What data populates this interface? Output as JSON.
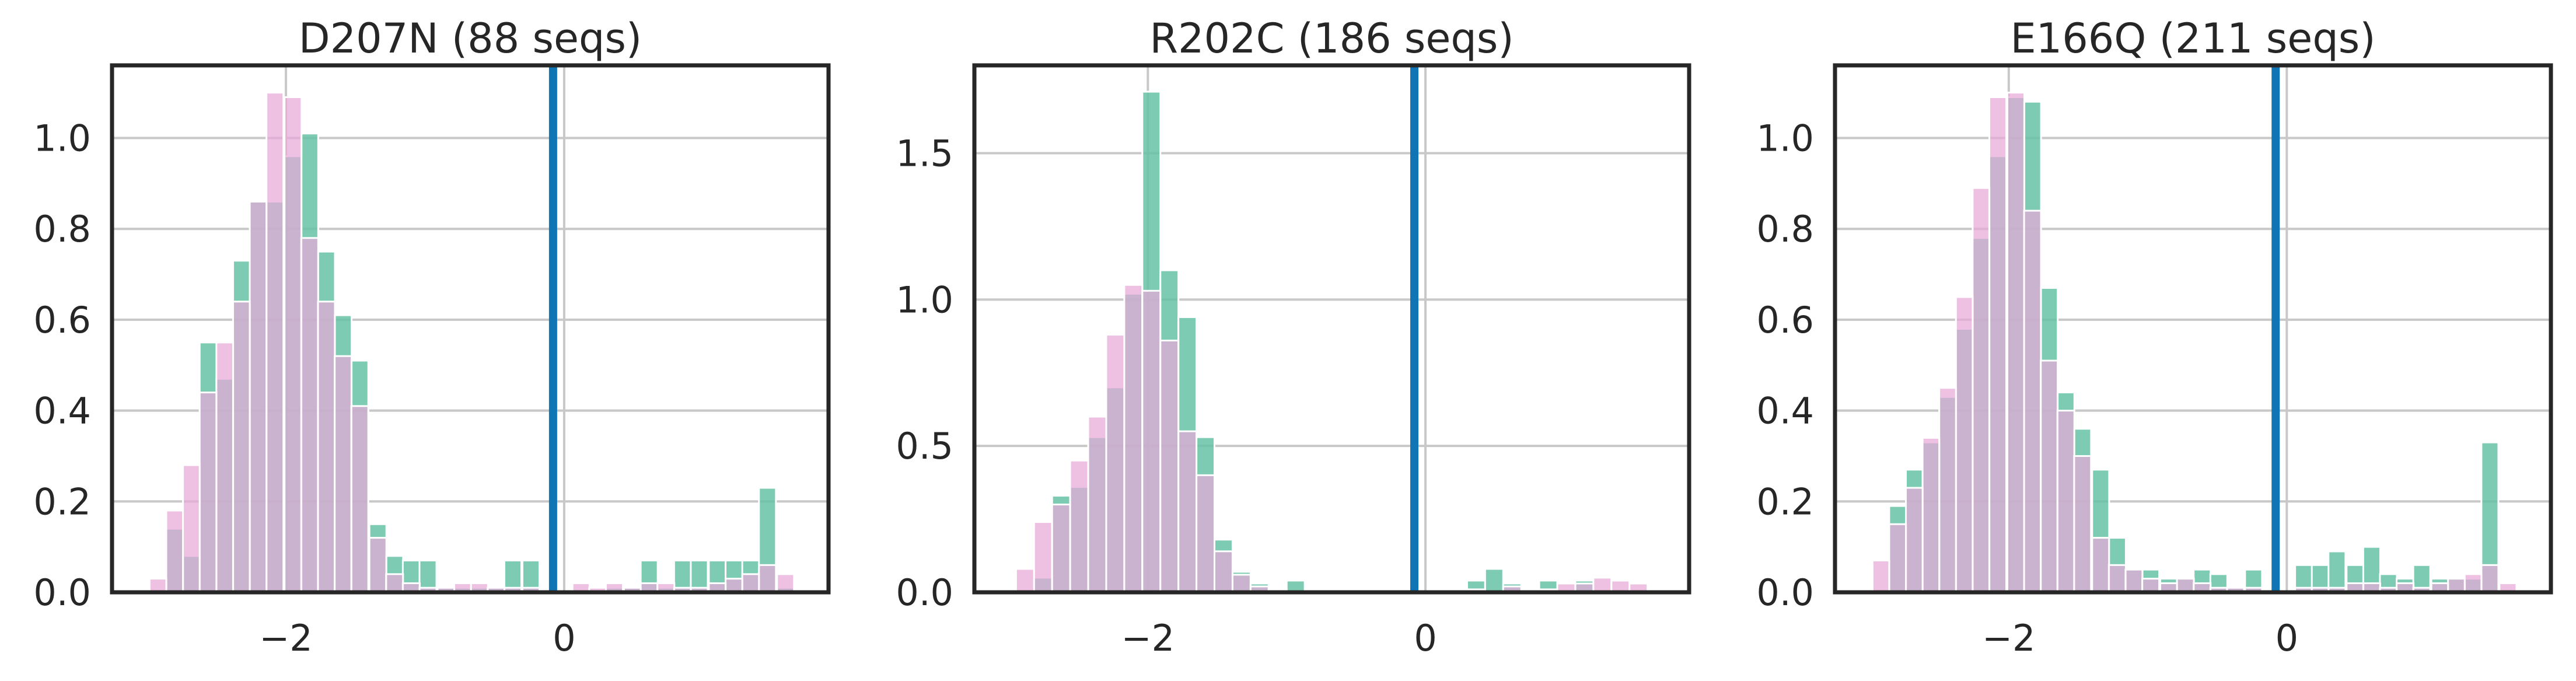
{
  "colors": {
    "series_a": "#66c2a5",
    "series_b": "#e7a9d8",
    "overlap": "#9b8fb4",
    "threshold": "#0f75b5",
    "grid": "#c8c8c8",
    "axis": "#262626"
  },
  "chart_data": [
    {
      "type": "bar",
      "title": "D207N (88 seqs)",
      "xlabel": "",
      "ylabel": "",
      "xlim": [
        -3.25,
        1.9
      ],
      "ylim": [
        0,
        1.16
      ],
      "xticks": [
        -2,
        0
      ],
      "xtick_labels": [
        "−2",
        "0"
      ],
      "yticks": [
        0.0,
        0.2,
        0.4,
        0.6,
        0.8,
        1.0
      ],
      "ytick_labels": [
        "0.0",
        "0.2",
        "0.4",
        "0.6",
        "0.8",
        "1.0"
      ],
      "grid": true,
      "threshold_x": -0.08,
      "series": [
        {
          "bin_width": 0.122,
          "bins": [
            {
              "x": -2.86,
              "y": 0.14
            },
            {
              "x": -2.74,
              "y": 0.08
            },
            {
              "x": -2.62,
              "y": 0.55
            },
            {
              "x": -2.5,
              "y": 0.47
            },
            {
              "x": -2.38,
              "y": 0.73
            },
            {
              "x": -2.26,
              "y": 0.86
            },
            {
              "x": -2.14,
              "y": 0.86
            },
            {
              "x": -2.01,
              "y": 0.96
            },
            {
              "x": -1.89,
              "y": 1.01
            },
            {
              "x": -1.77,
              "y": 0.75
            },
            {
              "x": -1.65,
              "y": 0.61
            },
            {
              "x": -1.53,
              "y": 0.51
            },
            {
              "x": -1.4,
              "y": 0.15
            },
            {
              "x": -1.28,
              "y": 0.08
            },
            {
              "x": -1.16,
              "y": 0.07
            },
            {
              "x": -1.04,
              "y": 0.07
            },
            {
              "x": -0.91,
              "y": 0.01
            },
            {
              "x": -0.79,
              "y": 0.01
            },
            {
              "x": -0.67,
              "y": 0.01
            },
            {
              "x": -0.55,
              "y": 0.01
            },
            {
              "x": -0.43,
              "y": 0.07
            },
            {
              "x": -0.3,
              "y": 0.07
            },
            {
              "x": 0.3,
              "y": 0.01
            },
            {
              "x": 0.43,
              "y": 0.01
            },
            {
              "x": 0.55,
              "y": 0.07
            },
            {
              "x": 0.67,
              "y": 0.01
            },
            {
              "x": 0.79,
              "y": 0.07
            },
            {
              "x": 0.91,
              "y": 0.07
            },
            {
              "x": 1.04,
              "y": 0.07
            },
            {
              "x": 1.16,
              "y": 0.07
            },
            {
              "x": 1.28,
              "y": 0.07
            },
            {
              "x": 1.4,
              "y": 0.23
            },
            {
              "x": 1.53,
              "y": 0.01
            }
          ]
        },
        {
          "bin_width": 0.122,
          "bins": [
            {
              "x": -2.98,
              "y": 0.03
            },
            {
              "x": -2.86,
              "y": 0.18
            },
            {
              "x": -2.74,
              "y": 0.28
            },
            {
              "x": -2.62,
              "y": 0.44
            },
            {
              "x": -2.5,
              "y": 0.55
            },
            {
              "x": -2.38,
              "y": 0.64
            },
            {
              "x": -2.26,
              "y": 0.86
            },
            {
              "x": -2.14,
              "y": 1.1
            },
            {
              "x": -2.01,
              "y": 1.09
            },
            {
              "x": -1.89,
              "y": 0.78
            },
            {
              "x": -1.77,
              "y": 0.64
            },
            {
              "x": -1.65,
              "y": 0.52
            },
            {
              "x": -1.53,
              "y": 0.41
            },
            {
              "x": -1.4,
              "y": 0.12
            },
            {
              "x": -1.28,
              "y": 0.04
            },
            {
              "x": -1.16,
              "y": 0.02
            },
            {
              "x": -1.04,
              "y": 0.01
            },
            {
              "x": -0.91,
              "y": 0.01
            },
            {
              "x": -0.79,
              "y": 0.02
            },
            {
              "x": -0.67,
              "y": 0.02
            },
            {
              "x": -0.55,
              "y": 0.01
            },
            {
              "x": -0.43,
              "y": 0.01
            },
            {
              "x": -0.3,
              "y": 0.01
            },
            {
              "x": 0.06,
              "y": 0.02
            },
            {
              "x": 0.18,
              "y": 0.01
            },
            {
              "x": 0.3,
              "y": 0.02
            },
            {
              "x": 0.43,
              "y": 0.01
            },
            {
              "x": 0.55,
              "y": 0.02
            },
            {
              "x": 0.67,
              "y": 0.02
            },
            {
              "x": 0.79,
              "y": 0.01
            },
            {
              "x": 0.91,
              "y": 0.01
            },
            {
              "x": 1.04,
              "y": 0.02
            },
            {
              "x": 1.16,
              "y": 0.03
            },
            {
              "x": 1.28,
              "y": 0.04
            },
            {
              "x": 1.4,
              "y": 0.06
            },
            {
              "x": 1.53,
              "y": 0.04
            }
          ]
        }
      ]
    },
    {
      "type": "bar",
      "title": "R202C (186 seqs)",
      "xlabel": "",
      "ylabel": "",
      "xlim": [
        -3.25,
        1.9
      ],
      "ylim": [
        0,
        1.8
      ],
      "xticks": [
        -2,
        0
      ],
      "xtick_labels": [
        "−2",
        "0"
      ],
      "yticks": [
        0.0,
        0.5,
        1.0,
        1.5
      ],
      "ytick_labels": [
        "0.0",
        "0.5",
        "1.0",
        "1.5"
      ],
      "grid": true,
      "threshold_x": -0.08,
      "series": [
        {
          "bin_width": 0.13,
          "bins": [
            {
              "x": -2.95,
              "y": 0.01
            },
            {
              "x": -2.82,
              "y": 0.05
            },
            {
              "x": -2.69,
              "y": 0.33
            },
            {
              "x": -2.56,
              "y": 0.36
            },
            {
              "x": -2.43,
              "y": 0.53
            },
            {
              "x": -2.3,
              "y": 0.7
            },
            {
              "x": -2.17,
              "y": 1.02
            },
            {
              "x": -2.04,
              "y": 1.71
            },
            {
              "x": -1.91,
              "y": 1.1
            },
            {
              "x": -1.78,
              "y": 0.94
            },
            {
              "x": -1.65,
              "y": 0.53
            },
            {
              "x": -1.52,
              "y": 0.18
            },
            {
              "x": -1.39,
              "y": 0.07
            },
            {
              "x": -1.26,
              "y": 0.03
            },
            {
              "x": -1.0,
              "y": 0.04
            },
            {
              "x": 0.3,
              "y": 0.04
            },
            {
              "x": 0.43,
              "y": 0.08
            },
            {
              "x": 0.56,
              "y": 0.03
            },
            {
              "x": 0.82,
              "y": 0.04
            },
            {
              "x": 1.08,
              "y": 0.04
            }
          ]
        },
        {
          "bin_width": 0.13,
          "bins": [
            {
              "x": -2.95,
              "y": 0.08
            },
            {
              "x": -2.82,
              "y": 0.24
            },
            {
              "x": -2.69,
              "y": 0.3
            },
            {
              "x": -2.56,
              "y": 0.45
            },
            {
              "x": -2.43,
              "y": 0.6
            },
            {
              "x": -2.3,
              "y": 0.88
            },
            {
              "x": -2.17,
              "y": 1.05
            },
            {
              "x": -2.04,
              "y": 1.03
            },
            {
              "x": -1.91,
              "y": 0.86
            },
            {
              "x": -1.78,
              "y": 0.55
            },
            {
              "x": -1.65,
              "y": 0.4
            },
            {
              "x": -1.52,
              "y": 0.14
            },
            {
              "x": -1.39,
              "y": 0.06
            },
            {
              "x": -1.26,
              "y": 0.02
            },
            {
              "x": -1.13,
              "y": 0.01
            },
            {
              "x": 0.04,
              "y": 0.01
            },
            {
              "x": 0.17,
              "y": 0.01
            },
            {
              "x": 0.3,
              "y": 0.01
            },
            {
              "x": 0.56,
              "y": 0.02
            },
            {
              "x": 0.82,
              "y": 0.01
            },
            {
              "x": 0.95,
              "y": 0.03
            },
            {
              "x": 1.08,
              "y": 0.03
            },
            {
              "x": 1.21,
              "y": 0.05
            },
            {
              "x": 1.34,
              "y": 0.04
            },
            {
              "x": 1.47,
              "y": 0.03
            }
          ]
        }
      ]
    },
    {
      "type": "bar",
      "title": "E166Q (211 seqs)",
      "xlabel": "",
      "ylabel": "",
      "xlim": [
        -3.25,
        1.9
      ],
      "ylim": [
        0,
        1.16
      ],
      "xticks": [
        -2,
        0
      ],
      "xtick_labels": [
        "−2",
        "0"
      ],
      "yticks": [
        0.0,
        0.2,
        0.4,
        0.6,
        0.8,
        1.0
      ],
      "ytick_labels": [
        "0.0",
        "0.2",
        "0.4",
        "0.6",
        "0.8",
        "1.0"
      ],
      "grid": true,
      "threshold_x": -0.08,
      "series": [
        {
          "bin_width": 0.122,
          "bins": [
            {
              "x": -2.86,
              "y": 0.19
            },
            {
              "x": -2.74,
              "y": 0.27
            },
            {
              "x": -2.62,
              "y": 0.33
            },
            {
              "x": -2.5,
              "y": 0.43
            },
            {
              "x": -2.38,
              "y": 0.58
            },
            {
              "x": -2.26,
              "y": 0.78
            },
            {
              "x": -2.14,
              "y": 0.96
            },
            {
              "x": -2.01,
              "y": 1.09
            },
            {
              "x": -1.89,
              "y": 1.08
            },
            {
              "x": -1.77,
              "y": 0.67
            },
            {
              "x": -1.65,
              "y": 0.44
            },
            {
              "x": -1.53,
              "y": 0.36
            },
            {
              "x": -1.4,
              "y": 0.27
            },
            {
              "x": -1.28,
              "y": 0.12
            },
            {
              "x": -1.16,
              "y": 0.05
            },
            {
              "x": -1.04,
              "y": 0.05
            },
            {
              "x": -0.91,
              "y": 0.03
            },
            {
              "x": -0.79,
              "y": 0.03
            },
            {
              "x": -0.67,
              "y": 0.05
            },
            {
              "x": -0.55,
              "y": 0.04
            },
            {
              "x": -0.43,
              "y": 0.01
            },
            {
              "x": -0.3,
              "y": 0.05
            },
            {
              "x": 0.06,
              "y": 0.06
            },
            {
              "x": 0.18,
              "y": 0.06
            },
            {
              "x": 0.3,
              "y": 0.09
            },
            {
              "x": 0.43,
              "y": 0.06
            },
            {
              "x": 0.55,
              "y": 0.1
            },
            {
              "x": 0.67,
              "y": 0.04
            },
            {
              "x": 0.79,
              "y": 0.03
            },
            {
              "x": 0.91,
              "y": 0.06
            },
            {
              "x": 1.04,
              "y": 0.03
            },
            {
              "x": 1.16,
              "y": 0.03
            },
            {
              "x": 1.28,
              "y": 0.03
            },
            {
              "x": 1.4,
              "y": 0.33
            }
          ]
        },
        {
          "bin_width": 0.122,
          "bins": [
            {
              "x": -2.98,
              "y": 0.07
            },
            {
              "x": -2.86,
              "y": 0.15
            },
            {
              "x": -2.74,
              "y": 0.23
            },
            {
              "x": -2.62,
              "y": 0.34
            },
            {
              "x": -2.5,
              "y": 0.45
            },
            {
              "x": -2.38,
              "y": 0.65
            },
            {
              "x": -2.26,
              "y": 0.89
            },
            {
              "x": -2.14,
              "y": 1.09
            },
            {
              "x": -2.01,
              "y": 1.1
            },
            {
              "x": -1.89,
              "y": 0.84
            },
            {
              "x": -1.77,
              "y": 0.51
            },
            {
              "x": -1.65,
              "y": 0.4
            },
            {
              "x": -1.53,
              "y": 0.3
            },
            {
              "x": -1.4,
              "y": 0.12
            },
            {
              "x": -1.28,
              "y": 0.06
            },
            {
              "x": -1.16,
              "y": 0.05
            },
            {
              "x": -1.04,
              "y": 0.03
            },
            {
              "x": -0.91,
              "y": 0.02
            },
            {
              "x": -0.79,
              "y": 0.03
            },
            {
              "x": -0.67,
              "y": 0.02
            },
            {
              "x": -0.55,
              "y": 0.01
            },
            {
              "x": -0.43,
              "y": 0.01
            },
            {
              "x": -0.3,
              "y": 0.01
            },
            {
              "x": 0.06,
              "y": 0.01
            },
            {
              "x": 0.18,
              "y": 0.01
            },
            {
              "x": 0.3,
              "y": 0.01
            },
            {
              "x": 0.43,
              "y": 0.02
            },
            {
              "x": 0.55,
              "y": 0.02
            },
            {
              "x": 0.67,
              "y": 0.01
            },
            {
              "x": 0.79,
              "y": 0.02
            },
            {
              "x": 0.91,
              "y": 0.01
            },
            {
              "x": 1.04,
              "y": 0.02
            },
            {
              "x": 1.16,
              "y": 0.03
            },
            {
              "x": 1.28,
              "y": 0.04
            },
            {
              "x": 1.4,
              "y": 0.06
            },
            {
              "x": 1.53,
              "y": 0.02
            }
          ]
        }
      ]
    }
  ]
}
